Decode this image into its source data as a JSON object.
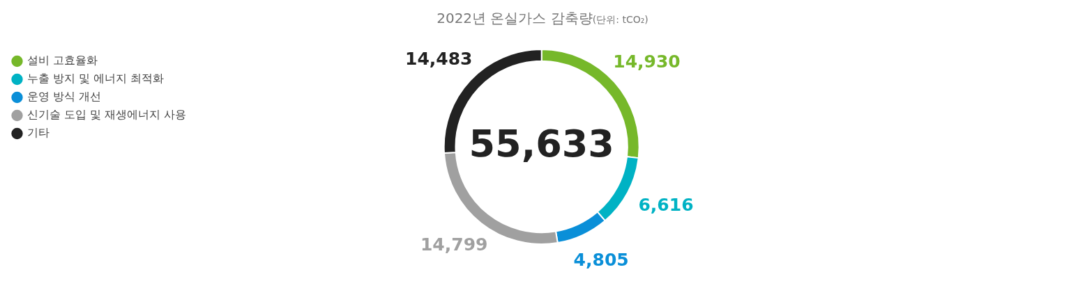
{
  "chart_data": {
    "type": "donut",
    "title": "2022년 온실가스 감축량",
    "subtitle": "(단위: tCO₂)",
    "categories": [
      "설비 고효율화",
      "누출 방지 및 에너지 최적화",
      "운영 방식 개선",
      "신기술 도입 및 재생에너지 사용",
      "기타"
    ],
    "values": [
      14930,
      6616,
      4805,
      14799,
      14483
    ],
    "colors": [
      "#76b82a",
      "#00b2c4",
      "#0a8fd8",
      "#a0a0a0",
      "#222222"
    ],
    "value_labels": [
      "14,930",
      "6,616",
      "4,805",
      "14,799",
      "14,483"
    ],
    "annotations": [
      "55,633"
    ],
    "legend": "top left"
  }
}
